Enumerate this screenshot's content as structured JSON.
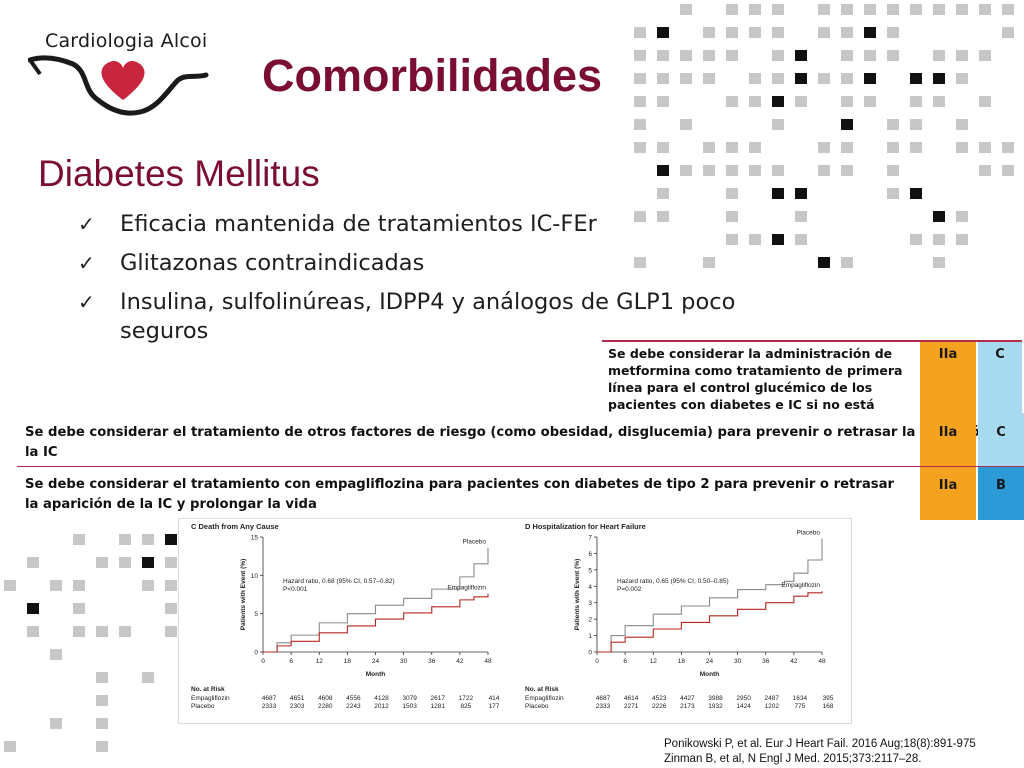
{
  "logo": {
    "text": "Cardiologia Alcoi",
    "icon": "heart-icon",
    "heart_color": "#c8263e"
  },
  "title": "Comorbilidades",
  "subtitle": "Diabetes Mellitus",
  "bullets": [
    "Eficacia mantenida de tratamientos IC-FEr",
    "Glitazonas contraindicadas",
    "Insulina, sulfolinúreas, IDPP4 y análogos de GLP1 poco seguros"
  ],
  "bullet_icon": "checkmark-icon",
  "guidelines": [
    {
      "text": "Se debe considerar la administración de metformina como tratamiento de primera línea para el control glucémico de los pacientes con diabetes e IC si no está contraindicado",
      "class": "IIa",
      "level": "C"
    },
    {
      "text": "Se debe considerar el tratamiento de otros factores de riesgo (como obesidad, disglucemia) para prevenir o retrasar la aparición de la IC",
      "class": "IIa",
      "level": "C"
    },
    {
      "text": "Se debe considerar el tratamiento con empagliflozina para pacientes con diabetes de tipo 2 para prevenir o retrasar la aparición de la IC y prolongar la vida",
      "class": "IIa",
      "level": "B"
    }
  ],
  "colors": {
    "title": "#7a0d33",
    "class_cell": "#f5a21f",
    "level_c": "#a7d9ef",
    "level_b": "#2b9ad6",
    "placebo": "#8a8a8a",
    "empagliflozin": "#b5271e"
  },
  "chart_data": [
    {
      "type": "line",
      "panel": "C",
      "title": "Death from Any Cause",
      "xlabel": "Month",
      "ylabel": "Patients with Event (%)",
      "xlim": [
        0,
        48
      ],
      "ylim": [
        0,
        15
      ],
      "xticks": [
        0,
        6,
        12,
        18,
        24,
        30,
        36,
        42,
        48
      ],
      "yticks": [
        0,
        5,
        10,
        15
      ],
      "annotation": [
        "Hazard ratio, 0.68 (95% CI, 0.57–0.82)",
        "P<0.001"
      ],
      "series": [
        {
          "name": "Placebo",
          "x": [
            0,
            3,
            6,
            12,
            18,
            24,
            30,
            36,
            42,
            45,
            48
          ],
          "y": [
            0,
            1.2,
            2.2,
            3.8,
            5.0,
            6.1,
            7.0,
            8.2,
            9.8,
            11.5,
            13.6
          ]
        },
        {
          "name": "Empagliflozin",
          "x": [
            0,
            3,
            6,
            12,
            18,
            24,
            30,
            36,
            42,
            45,
            48
          ],
          "y": [
            0,
            0.8,
            1.4,
            2.5,
            3.4,
            4.3,
            5.1,
            5.9,
            6.8,
            7.2,
            7.6
          ]
        }
      ],
      "risk_table": {
        "header": "No. at Risk",
        "rows": [
          {
            "name": "Empagliflozin",
            "values": [
              "4687",
              "4651",
              "4608",
              "4556",
              "4128",
              "3079",
              "2617",
              "1722",
              "414"
            ]
          },
          {
            "name": "Placebo",
            "values": [
              "2333",
              "2303",
              "2280",
              "2243",
              "2012",
              "1503",
              "1281",
              "825",
              "177"
            ]
          }
        ]
      }
    },
    {
      "type": "line",
      "panel": "D",
      "title": "Hospitalization for Heart Failure",
      "xlabel": "Month",
      "ylabel": "Patients with Event (%)",
      "xlim": [
        0,
        48
      ],
      "ylim": [
        0,
        7
      ],
      "xticks": [
        0,
        6,
        12,
        18,
        24,
        30,
        36,
        42,
        48
      ],
      "yticks": [
        0,
        1,
        2,
        3,
        4,
        5,
        6,
        7
      ],
      "annotation": [
        "Hazard ratio, 0.65 (95% CI, 0.50–0.85)",
        "P=0.002"
      ],
      "series": [
        {
          "name": "Placebo",
          "x": [
            0,
            3,
            6,
            12,
            18,
            24,
            30,
            36,
            40,
            42,
            45,
            48
          ],
          "y": [
            0,
            1.0,
            1.6,
            2.3,
            2.8,
            3.3,
            3.8,
            4.1,
            4.3,
            4.8,
            5.6,
            6.9
          ]
        },
        {
          "name": "Empagliflozin",
          "x": [
            0,
            3,
            6,
            12,
            18,
            24,
            30,
            36,
            42,
            45,
            48
          ],
          "y": [
            0,
            0.6,
            0.9,
            1.4,
            1.8,
            2.2,
            2.6,
            3.0,
            3.4,
            3.6,
            3.7
          ]
        }
      ],
      "risk_table": {
        "header": "No. at Risk",
        "rows": [
          {
            "name": "Empagliflozin",
            "values": [
              "4687",
              "4614",
              "4523",
              "4427",
              "3988",
              "2950",
              "2487",
              "1634",
              "395"
            ]
          },
          {
            "name": "Placebo",
            "values": [
              "2333",
              "2271",
              "2226",
              "2173",
              "1932",
              "1424",
              "1202",
              "775",
              "168"
            ]
          }
        ]
      }
    }
  ],
  "citations": [
    "Ponikowski P, et al. Eur J Heart Fail. 2016 Aug;18(8):891-975",
    "Zinman B, et al, N Engl J Med. 2015;373:2117–28."
  ]
}
